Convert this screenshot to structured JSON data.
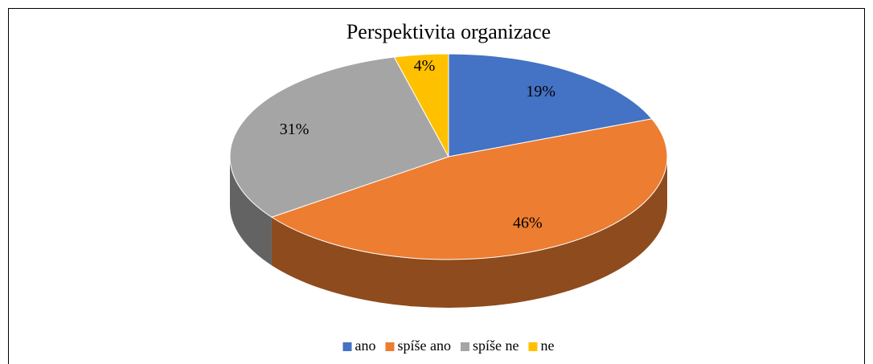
{
  "chart_data": {
    "type": "pie3d",
    "title": "Perspektivita organizace",
    "categories": [
      "ano",
      "spíše ano",
      "spíše ne",
      "ne"
    ],
    "values": [
      19,
      46,
      31,
      4
    ],
    "value_labels": [
      "19%",
      "46%",
      "31%",
      "4%"
    ],
    "colors": [
      "#4472c4",
      "#ed7d31",
      "#a5a5a5",
      "#ffc000"
    ],
    "legend": "bottom"
  }
}
